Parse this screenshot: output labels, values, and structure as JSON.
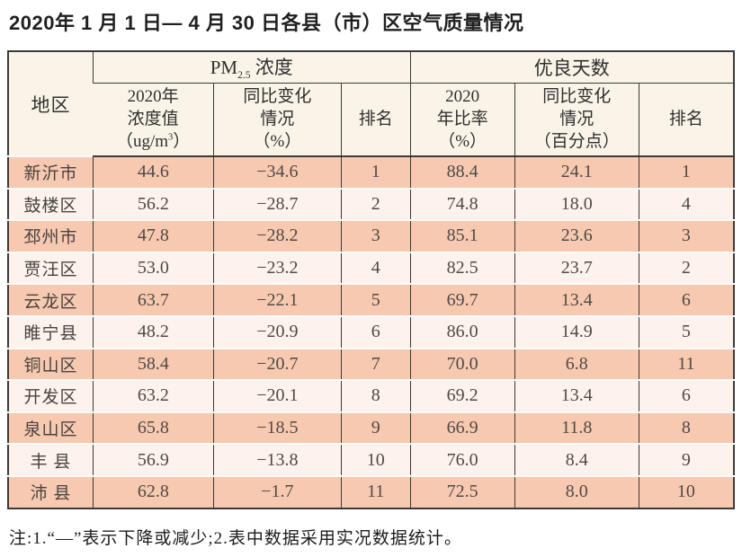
{
  "page": {
    "title": "2020年 1 月 1 日— 4 月 30 日各县（市）区空气质量情况",
    "note": "注:1.“—”表示下降或减少;2.表中数据采用实况数据统计。"
  },
  "colors": {
    "row_salmon": "#f8c9b1",
    "row_light": "#fdf2ec",
    "header_cream": "#faf4e8",
    "border_dark": "#3a3a3a"
  },
  "table": {
    "corner_header": "地区",
    "groups": {
      "pm25": {
        "prefix": "PM",
        "sub": "2.5",
        "suffix": " 浓度"
      },
      "good_days": {
        "label": "优良天数"
      }
    },
    "columns": {
      "pm_value": {
        "line1": "2020年",
        "line2": "浓度值",
        "line3_prefix": "（ug/m",
        "line3_sup": "3",
        "line3_suffix": "）"
      },
      "pm_change": {
        "line1": "同比变化",
        "line2": "情况",
        "line3": "（%）"
      },
      "pm_rank": "排名",
      "good_ratio": {
        "line1": "2020",
        "line2": "年比率",
        "line3": "（%）"
      },
      "good_change": {
        "line1": "同比变化",
        "line2": "情况",
        "line3": "（百分点）"
      },
      "good_rank": "排名"
    },
    "rows": [
      {
        "region": "新沂市",
        "pm_value": "44.6",
        "pm_change": "−34.6",
        "pm_rank": "1",
        "good_ratio": "88.4",
        "good_change": "24.1",
        "good_rank": "1"
      },
      {
        "region": "鼓楼区",
        "pm_value": "56.2",
        "pm_change": "−28.7",
        "pm_rank": "2",
        "good_ratio": "74.8",
        "good_change": "18.0",
        "good_rank": "4"
      },
      {
        "region": "邳州市",
        "pm_value": "47.8",
        "pm_change": "−28.2",
        "pm_rank": "3",
        "good_ratio": "85.1",
        "good_change": "23.6",
        "good_rank": "3"
      },
      {
        "region": "贾汪区",
        "pm_value": "53.0",
        "pm_change": "−23.2",
        "pm_rank": "4",
        "good_ratio": "82.5",
        "good_change": "23.7",
        "good_rank": "2"
      },
      {
        "region": "云龙区",
        "pm_value": "63.7",
        "pm_change": "−22.1",
        "pm_rank": "5",
        "good_ratio": "69.7",
        "good_change": "13.4",
        "good_rank": "6"
      },
      {
        "region": "睢宁县",
        "pm_value": "48.2",
        "pm_change": "−20.9",
        "pm_rank": "6",
        "good_ratio": "86.0",
        "good_change": "14.9",
        "good_rank": "5"
      },
      {
        "region": "铜山区",
        "pm_value": "58.4",
        "pm_change": "−20.7",
        "pm_rank": "7",
        "good_ratio": "70.0",
        "good_change": "6.8",
        "good_rank": "11"
      },
      {
        "region": "开发区",
        "pm_value": "63.2",
        "pm_change": "−20.1",
        "pm_rank": "8",
        "good_ratio": "69.2",
        "good_change": "13.4",
        "good_rank": "6"
      },
      {
        "region": "泉山区",
        "pm_value": "65.8",
        "pm_change": "−18.5",
        "pm_rank": "9",
        "good_ratio": "66.9",
        "good_change": "11.8",
        "good_rank": "8"
      },
      {
        "region": "丰 县",
        "pm_value": "56.9",
        "pm_change": "−13.8",
        "pm_rank": "10",
        "good_ratio": "76.0",
        "good_change": "8.4",
        "good_rank": "9"
      },
      {
        "region": "沛 县",
        "pm_value": "62.8",
        "pm_change": "−1.7",
        "pm_rank": "11",
        "good_ratio": "72.5",
        "good_change": "8.0",
        "good_rank": "10"
      }
    ]
  }
}
